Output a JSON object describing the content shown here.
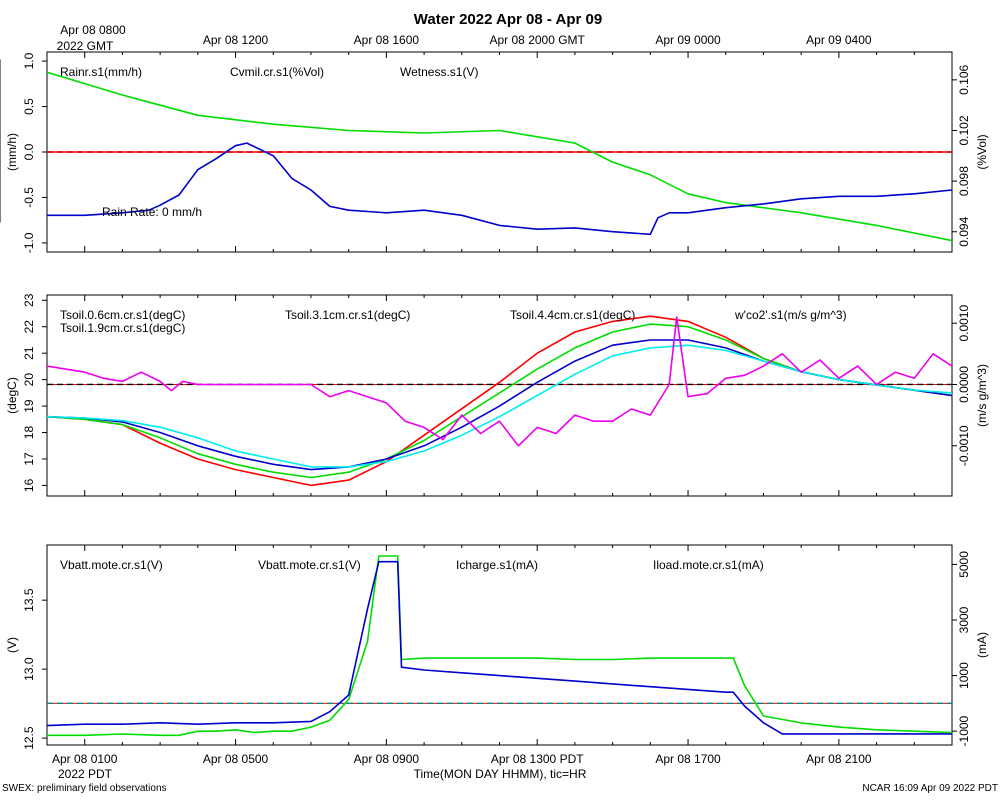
{
  "title": "Water 2022 Apr 08 - Apr 09",
  "footer": {
    "left": "SWEX: preliminary field observations",
    "right": "NCAR 16:09 Apr 09 2022 PDT",
    "xlabel": "Time(MON DAY HHMM), tic=HR",
    "bottom_year": "2022 PDT"
  },
  "top_axis": {
    "first_line1": "Apr 08 0800",
    "first_line2": "2022 GMT",
    "ticks": [
      "Apr 08 1200",
      "Apr 08 1600",
      "Apr 08 2000 GMT",
      "Apr 09 0000",
      "Apr 09 0400"
    ]
  },
  "bottom_axis": {
    "ticks": [
      "Apr 08 0100",
      "Apr 08 0500",
      "Apr 08 0900",
      "Apr 08 1300 PDT",
      "Apr 08 1700",
      "Apr 08 2100"
    ]
  },
  "colors": {
    "red": "#ff0000",
    "green": "#00dd00",
    "blue": "#0000cc",
    "cyan": "#00eeee",
    "magenta": "#ee00ee"
  },
  "chart_data": [
    {
      "type": "line",
      "name": "water",
      "x_unit": "hours since Apr 08 0000 PDT",
      "xlim": [
        0,
        24
      ],
      "left_axis": {
        "label": "(mm/h)",
        "ylim": [
          -1.1,
          1.1
        ],
        "ticks": [
          "1.0",
          "0.5",
          "0.0",
          "-0.5",
          "-1.0"
        ],
        "tick_values": [
          1.0,
          0.5,
          0.0,
          -0.5,
          -1.0
        ]
      },
      "right_axis": {
        "label": "(%Vol)",
        "ylim": [
          0.0924,
          0.1082
        ],
        "ticks": [
          "0.106",
          "0.102",
          "0.098",
          "0.094"
        ],
        "tick_values": [
          0.106,
          0.102,
          0.098,
          0.094
        ]
      },
      "reference_line": 0.0,
      "annotation": "Rain Rate: 0 mm/h",
      "series": [
        {
          "name": "Rainr.s1(mm/h)",
          "color": "red",
          "axis": "left",
          "x": [
            0,
            24
          ],
          "values": [
            0,
            0
          ]
        },
        {
          "name": "Cvmil.cr.s1(%Vol)",
          "color": "green",
          "axis": "right",
          "x": [
            0,
            2,
            4,
            6,
            8,
            10,
            12,
            14,
            15,
            16,
            17,
            18,
            20,
            22,
            24
          ],
          "values": [
            0.1066,
            0.1048,
            0.1032,
            0.1025,
            0.102,
            0.1018,
            0.102,
            0.101,
            0.0995,
            0.0985,
            0.097,
            0.0963,
            0.0955,
            0.0945,
            0.0933
          ]
        },
        {
          "name": "Wetness.s1(V)",
          "color": "blue",
          "axis": "right",
          "x": [
            0,
            1,
            2,
            2.7,
            3,
            3.5,
            4,
            4.5,
            5,
            5.3,
            6,
            6.5,
            7,
            7.5,
            8,
            9,
            10,
            11,
            12,
            13,
            14,
            15,
            16,
            16.2,
            16.5,
            17,
            18,
            19,
            20,
            21,
            22,
            23,
            24
          ],
          "values": [
            0.0953,
            0.0953,
            0.0955,
            0.0957,
            0.0961,
            0.0969,
            0.0989,
            0.0998,
            0.1008,
            0.101,
            0.1,
            0.0982,
            0.0973,
            0.096,
            0.0957,
            0.0955,
            0.0957,
            0.0953,
            0.0945,
            0.0942,
            0.0943,
            0.094,
            0.0938,
            0.0951,
            0.0955,
            0.0955,
            0.0959,
            0.0962,
            0.0966,
            0.0968,
            0.0968,
            0.097,
            0.0973
          ]
        }
      ]
    },
    {
      "type": "line",
      "name": "soil temperature",
      "x_unit": "hours since Apr 08 0000 PDT",
      "xlim": [
        0,
        24
      ],
      "left_axis": {
        "label": "(degC)",
        "ylim": [
          15.6,
          23.2
        ],
        "ticks": [
          "23",
          "22",
          "21",
          "20",
          "19",
          "18",
          "17",
          "16"
        ],
        "tick_values": [
          23,
          22,
          21,
          20,
          19,
          18,
          17,
          16
        ]
      },
      "right_axis": {
        "label": "(m/s g/m^3)",
        "ylim": [
          -0.00182,
          0.00146
        ],
        "ticks": [
          "0.0010",
          "0.0000",
          "-0.0010"
        ],
        "tick_values": [
          0.001,
          0.0,
          -0.001
        ]
      },
      "reference_line": 0.0,
      "series": [
        {
          "name": "Tsoil.0.6cm.cr.s1(degC)",
          "color": "red",
          "axis": "left",
          "x": [
            0,
            1,
            2,
            3,
            4,
            5,
            6,
            7,
            8,
            9,
            10,
            11,
            12,
            13,
            14,
            15,
            16,
            17,
            18,
            19,
            20,
            21,
            22,
            23,
            24
          ],
          "values": [
            18.6,
            18.5,
            18.3,
            17.6,
            17.0,
            16.6,
            16.3,
            16.0,
            16.2,
            16.9,
            17.9,
            18.9,
            19.9,
            21.0,
            21.8,
            22.2,
            22.4,
            22.2,
            21.6,
            20.8,
            20.3,
            20.0,
            19.8,
            19.6,
            19.4
          ]
        },
        {
          "name": "Tsoil.1.9cm.cr.s1(degC)",
          "color": "green",
          "axis": "left",
          "x": [
            0,
            1,
            2,
            3,
            4,
            5,
            6,
            7,
            8,
            9,
            10,
            11,
            12,
            13,
            14,
            15,
            16,
            17,
            18,
            19,
            20,
            21,
            22,
            23,
            24
          ],
          "values": [
            18.6,
            18.5,
            18.3,
            17.8,
            17.2,
            16.8,
            16.5,
            16.3,
            16.5,
            17.0,
            17.7,
            18.6,
            19.5,
            20.4,
            21.2,
            21.8,
            22.1,
            22.0,
            21.5,
            20.8,
            20.3,
            20.0,
            19.8,
            19.6,
            19.4
          ]
        },
        {
          "name": "Tsoil.3.1cm.cr.s1(degC)",
          "color": "blue",
          "axis": "left",
          "x": [
            0,
            1,
            2,
            3,
            4,
            5,
            6,
            7,
            8,
            9,
            10,
            11,
            12,
            13,
            14,
            15,
            16,
            17,
            18,
            19,
            20,
            21,
            22,
            23,
            24
          ],
          "values": [
            18.6,
            18.55,
            18.4,
            18.0,
            17.5,
            17.1,
            16.8,
            16.6,
            16.7,
            17.0,
            17.5,
            18.2,
            19.0,
            19.9,
            20.7,
            21.3,
            21.5,
            21.5,
            21.2,
            20.7,
            20.3,
            20.0,
            19.8,
            19.6,
            19.4
          ]
        },
        {
          "name": "Tsoil.4.4cm.cr.s1(degC)",
          "color": "cyan",
          "axis": "left",
          "x": [
            0,
            1,
            2,
            3,
            4,
            5,
            6,
            7,
            8,
            9,
            10,
            11,
            12,
            13,
            14,
            15,
            16,
            17,
            18,
            19,
            20,
            21,
            22,
            23,
            24
          ],
          "values": [
            18.6,
            18.55,
            18.45,
            18.2,
            17.8,
            17.3,
            17.0,
            16.7,
            16.7,
            16.9,
            17.3,
            17.9,
            18.6,
            19.4,
            20.2,
            20.9,
            21.2,
            21.3,
            21.1,
            20.7,
            20.3,
            20.0,
            19.8,
            19.6,
            19.5
          ]
        },
        {
          "name": "w'co2'.s1(m/s g/m^3)",
          "color": "magenta",
          "axis": "right",
          "x": [
            0,
            1,
            1.5,
            2,
            2.5,
            3,
            3.3,
            3.6,
            4,
            5,
            6,
            7,
            7.5,
            8,
            8.5,
            9,
            9.5,
            10,
            10.5,
            11,
            11.5,
            12,
            12.5,
            13,
            13.5,
            14,
            14.5,
            15,
            15.5,
            16,
            16.5,
            16.7,
            17,
            17.5,
            18,
            18.5,
            19,
            19.5,
            20,
            20.5,
            21,
            21.5,
            22,
            22.5,
            23,
            23.5,
            24
          ],
          "values": [
            0.0003,
            0.0002,
            0.0001,
            5e-05,
            0.0002,
            5e-05,
            -0.0001,
            5e-05,
            0.0,
            0.0,
            0.0,
            0.0,
            -0.0002,
            -0.0001,
            -0.0002,
            -0.0003,
            -0.0006,
            -0.0007,
            -0.0009,
            -0.0005,
            -0.0008,
            -0.0006,
            -0.001,
            -0.0007,
            -0.0008,
            -0.0005,
            -0.0006,
            -0.0006,
            -0.0004,
            -0.0005,
            0.0,
            0.0011,
            -0.0002,
            -0.00015,
            0.0001,
            0.00015,
            0.0003,
            0.0005,
            0.0002,
            0.0004,
            0.0001,
            0.0003,
            0.0,
            0.0002,
            0.0001,
            0.0005,
            0.0003
          ]
        }
      ]
    },
    {
      "type": "line",
      "name": "power",
      "x_unit": "hours since Apr 08 0000 PDT",
      "xlim": [
        0,
        24
      ],
      "left_axis": {
        "label": "(V)",
        "ylim": [
          12.45,
          13.9
        ],
        "ticks": [
          "13.5",
          "13.0",
          "12.5"
        ],
        "tick_values": [
          13.5,
          13.0,
          12.5
        ]
      },
      "right_axis": {
        "label": "(mA)",
        "ylim": [
          -1500,
          5700
        ],
        "ticks": [
          "5000",
          "3000",
          "1000",
          "-1000"
        ],
        "tick_values": [
          5000,
          3000,
          1000,
          -1000
        ]
      },
      "reference_line": 0,
      "series": [
        {
          "name": "Vbatt.mote.cr.s1(V)",
          "color": "red",
          "axis": "left",
          "x": [],
          "values": []
        },
        {
          "name": "Vbatt.mote.cr.s1(V)",
          "color": "green",
          "axis": "left",
          "x": [
            0,
            1,
            2,
            3,
            3.5,
            4,
            4.5,
            5,
            5.5,
            6,
            6.5,
            7,
            7.5,
            8,
            8.5,
            8.8,
            9.3,
            9.4,
            10,
            11,
            12,
            13,
            14,
            15,
            16,
            17,
            18,
            18.2,
            18.5,
            19,
            20,
            21,
            22,
            23,
            24
          ],
          "values": [
            12.52,
            12.52,
            12.53,
            12.52,
            12.52,
            12.55,
            12.55,
            12.56,
            12.54,
            12.55,
            12.55,
            12.58,
            12.63,
            12.78,
            13.2,
            13.82,
            13.82,
            13.07,
            13.08,
            13.08,
            13.08,
            13.08,
            13.07,
            13.07,
            13.08,
            13.08,
            13.08,
            13.08,
            12.88,
            12.66,
            12.61,
            12.58,
            12.56,
            12.55,
            12.54
          ]
        },
        {
          "name": "Icharge.s1(mA)",
          "color": "blue",
          "axis": "right",
          "x": [
            0,
            1,
            2,
            3,
            4,
            5,
            6,
            7,
            7.5,
            8,
            8.5,
            8.8,
            9.3,
            9.4,
            10,
            11,
            12,
            13,
            14,
            15,
            16,
            17,
            18,
            18.2,
            18.5,
            19,
            19.5,
            20,
            21,
            22,
            23,
            24
          ],
          "values": [
            -800,
            -750,
            -750,
            -700,
            -750,
            -700,
            -700,
            -650,
            -300,
            300,
            3400,
            5100,
            5100,
            1300,
            1200,
            1100,
            1000,
            900,
            800,
            700,
            600,
            500,
            400,
            400,
            -100,
            -700,
            -1100,
            -1100,
            -1100,
            -1100,
            -1100,
            -1100
          ]
        },
        {
          "name": "Iload.mote.cr.s1(mA)",
          "color": "cyan",
          "axis": "right",
          "x": [],
          "values": []
        }
      ]
    }
  ]
}
